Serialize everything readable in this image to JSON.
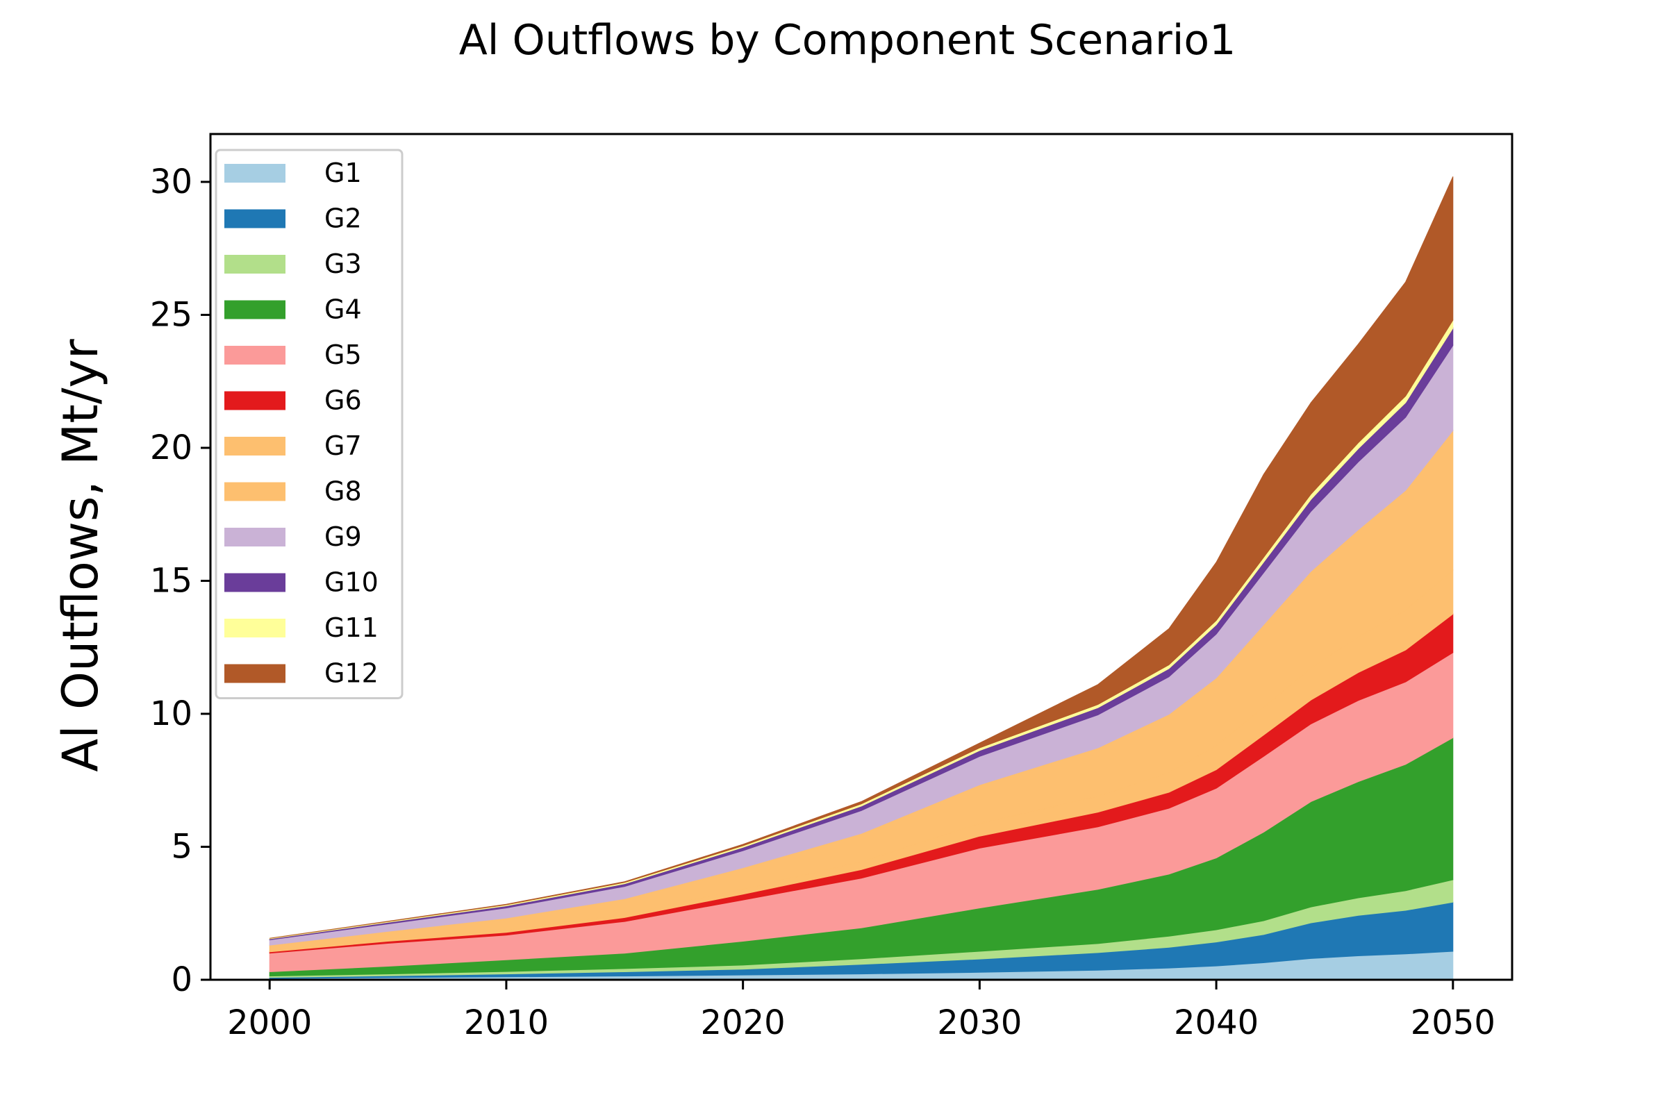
{
  "chart_data": {
    "type": "area",
    "stacked": true,
    "title": "Al Outflows by Component Scenario1",
    "xlabel": "",
    "ylabel": "Al Outflows, Mt/yr",
    "xlim": [
      1997.5,
      2052.5
    ],
    "ylim": [
      0,
      31.8
    ],
    "xticks": [
      2000,
      2010,
      2020,
      2030,
      2040,
      2050
    ],
    "yticks": [
      0,
      5,
      10,
      15,
      20,
      25,
      30
    ],
    "grid": false,
    "legend": "upper left",
    "x": [
      2000,
      2005,
      2010,
      2015,
      2020,
      2025,
      2030,
      2035,
      2038,
      2040,
      2042,
      2044,
      2046,
      2048,
      2050
    ],
    "series": [
      {
        "name": "G1",
        "color": "#a6cee3",
        "values": [
          0.05,
          0.08,
          0.11,
          0.14,
          0.18,
          0.22,
          0.28,
          0.36,
          0.44,
          0.52,
          0.64,
          0.8,
          0.9,
          0.97,
          1.07
        ]
      },
      {
        "name": "G2",
        "color": "#1f78b4",
        "values": [
          0.04,
          0.07,
          0.11,
          0.16,
          0.22,
          0.36,
          0.5,
          0.66,
          0.78,
          0.9,
          1.06,
          1.34,
          1.52,
          1.64,
          1.85
        ]
      },
      {
        "name": "G3",
        "color": "#b2df8a",
        "values": [
          0.05,
          0.07,
          0.09,
          0.12,
          0.15,
          0.21,
          0.29,
          0.34,
          0.42,
          0.46,
          0.52,
          0.6,
          0.66,
          0.74,
          0.84
        ]
      },
      {
        "name": "G4",
        "color": "#33a02c",
        "values": [
          0.16,
          0.29,
          0.44,
          0.58,
          0.9,
          1.16,
          1.63,
          2.04,
          2.33,
          2.7,
          3.33,
          3.96,
          4.37,
          4.75,
          5.34
        ]
      },
      {
        "name": "G5",
        "color": "#fb9a99",
        "values": [
          0.7,
          0.86,
          0.93,
          1.19,
          1.55,
          1.87,
          2.25,
          2.35,
          2.48,
          2.62,
          2.85,
          2.92,
          3.05,
          3.1,
          3.2
        ]
      },
      {
        "name": "G6",
        "color": "#e31a1c",
        "values": [
          0.05,
          0.08,
          0.1,
          0.15,
          0.22,
          0.32,
          0.45,
          0.55,
          0.6,
          0.7,
          0.8,
          0.9,
          1.05,
          1.2,
          1.45
        ]
      },
      {
        "name": "G7",
        "color": "#fdbf6f",
        "values": [
          0.05,
          0.07,
          0.1,
          0.13,
          0.19,
          0.3,
          0.48,
          0.6,
          0.75,
          0.9,
          1.05,
          1.2,
          1.35,
          1.5,
          1.65
        ]
      },
      {
        "name": "G8",
        "color": "#fdbf6f",
        "values": [
          0.2,
          0.3,
          0.44,
          0.58,
          0.8,
          1.06,
          1.45,
          1.82,
          2.18,
          2.55,
          3.1,
          3.64,
          4.02,
          4.5,
          5.25
        ]
      },
      {
        "name": "G9",
        "color": "#cab2d6",
        "values": [
          0.2,
          0.28,
          0.38,
          0.46,
          0.64,
          0.86,
          1.07,
          1.24,
          1.41,
          1.65,
          1.95,
          2.25,
          2.55,
          2.75,
          3.2
        ]
      },
      {
        "name": "G10",
        "color": "#6a3d9a",
        "values": [
          0.04,
          0.06,
          0.08,
          0.1,
          0.13,
          0.17,
          0.22,
          0.27,
          0.31,
          0.35,
          0.4,
          0.45,
          0.5,
          0.55,
          0.65
        ]
      },
      {
        "name": "G11",
        "color": "#ffff99",
        "values": [
          0.02,
          0.03,
          0.04,
          0.05,
          0.06,
          0.08,
          0.1,
          0.12,
          0.14,
          0.16,
          0.18,
          0.2,
          0.22,
          0.25,
          0.3
        ]
      },
      {
        "name": "G12",
        "color": "#b15928",
        "values": [
          0.0,
          0.01,
          0.02,
          0.03,
          0.05,
          0.09,
          0.18,
          0.75,
          1.36,
          2.19,
          3.12,
          3.44,
          3.71,
          4.29,
          5.4
        ]
      }
    ]
  }
}
